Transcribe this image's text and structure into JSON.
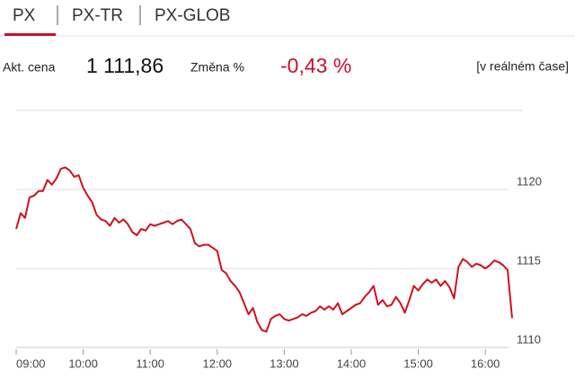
{
  "tabs": [
    "PX",
    "PX-TR",
    "PX-GLOB"
  ],
  "info": {
    "price_label": "Akt. cena",
    "price": "1 111,86",
    "change_label": "Změna %",
    "change": "-0,43 %",
    "realtime": "[v reálném čase]"
  },
  "chart_data": {
    "type": "line",
    "color": "#d0101e",
    "x": [
      "09:00",
      "09:04",
      "09:08",
      "09:12",
      "09:16",
      "09:20",
      "09:24",
      "09:28",
      "09:32",
      "09:36",
      "09:40",
      "09:44",
      "09:48",
      "09:52",
      "09:56",
      "10:00",
      "10:04",
      "10:08",
      "10:12",
      "10:16",
      "10:20",
      "10:24",
      "10:28",
      "10:32",
      "10:36",
      "10:40",
      "10:44",
      "10:48",
      "10:52",
      "10:56",
      "11:00",
      "11:04",
      "11:08",
      "11:12",
      "11:16",
      "11:20",
      "11:24",
      "11:28",
      "11:32",
      "11:36",
      "11:40",
      "11:44",
      "11:48",
      "11:52",
      "11:56",
      "12:00",
      "12:04",
      "12:08",
      "12:12",
      "12:16",
      "12:20",
      "12:24",
      "12:28",
      "12:32",
      "12:36",
      "12:40",
      "12:44",
      "12:48",
      "12:52",
      "12:56",
      "13:00",
      "13:04",
      "13:08",
      "13:12",
      "13:16",
      "13:20",
      "13:24",
      "13:28",
      "13:32",
      "13:36",
      "13:40",
      "13:44",
      "13:48",
      "13:52",
      "13:56",
      "14:00",
      "14:04",
      "14:08",
      "14:12",
      "14:16",
      "14:20",
      "14:24",
      "14:28",
      "14:32",
      "14:36",
      "14:40",
      "14:44",
      "14:48",
      "14:52",
      "14:56",
      "15:00",
      "15:04",
      "15:08",
      "15:12",
      "15:16",
      "15:20",
      "15:24",
      "15:28",
      "15:32",
      "15:36",
      "15:40",
      "15:44",
      "15:48",
      "15:52",
      "15:56",
      "16:00",
      "16:04",
      "16:08",
      "16:12",
      "16:16",
      "16:20",
      "16:24"
    ],
    "values": [
      1117.5,
      1118.5,
      1118.2,
      1119.5,
      1119.6,
      1119.9,
      1119.9,
      1120.6,
      1120.3,
      1120.7,
      1121.3,
      1121.4,
      1121.2,
      1120.8,
      1120.9,
      1120.1,
      1119.6,
      1119.2,
      1118.4,
      1118.1,
      1118.0,
      1117.7,
      1118.2,
      1117.9,
      1118.1,
      1117.8,
      1117.3,
      1117.1,
      1117.5,
      1117.4,
      1117.8,
      1117.7,
      1117.8,
      1117.9,
      1118.0,
      1117.8,
      1118.0,
      1118.1,
      1117.8,
      1117.5,
      1116.6,
      1116.4,
      1116.5,
      1116.5,
      1116.3,
      1116.1,
      1114.9,
      1114.7,
      1114.2,
      1113.9,
      1113.5,
      1112.8,
      1112.1,
      1112.5,
      1111.6,
      1111.1,
      1111.0,
      1111.8,
      1112.0,
      1112.1,
      1111.8,
      1111.7,
      1111.8,
      1111.9,
      1112.1,
      1112.0,
      1112.2,
      1112.3,
      1112.6,
      1112.4,
      1112.6,
      1112.4,
      1112.8,
      1112.1,
      1112.3,
      1112.5,
      1112.7,
      1112.8,
      1113.2,
      1113.5,
      1113.9,
      1112.7,
      1113.0,
      1112.6,
      1112.7,
      1113.2,
      1112.8,
      1112.2,
      1113.0,
      1113.9,
      1113.6,
      1114.0,
      1114.3,
      1114.1,
      1114.3,
      1113.9,
      1114.2,
      1113.8,
      1113.1,
      1115.1,
      1115.6,
      1115.4,
      1115.1,
      1115.3,
      1115.2,
      1115.0,
      1115.2,
      1115.5,
      1115.4,
      1115.2,
      1114.9,
      1111.86
    ],
    "xlim": [
      "09:00",
      "16:24"
    ],
    "xticks": [
      "09:00",
      "10:00",
      "11:00",
      "12:00",
      "13:00",
      "14:00",
      "15:00",
      "16:00"
    ],
    "ylim": [
      1110,
      1125
    ],
    "yticks": [
      1110,
      1115,
      1120
    ],
    "grid": true
  }
}
